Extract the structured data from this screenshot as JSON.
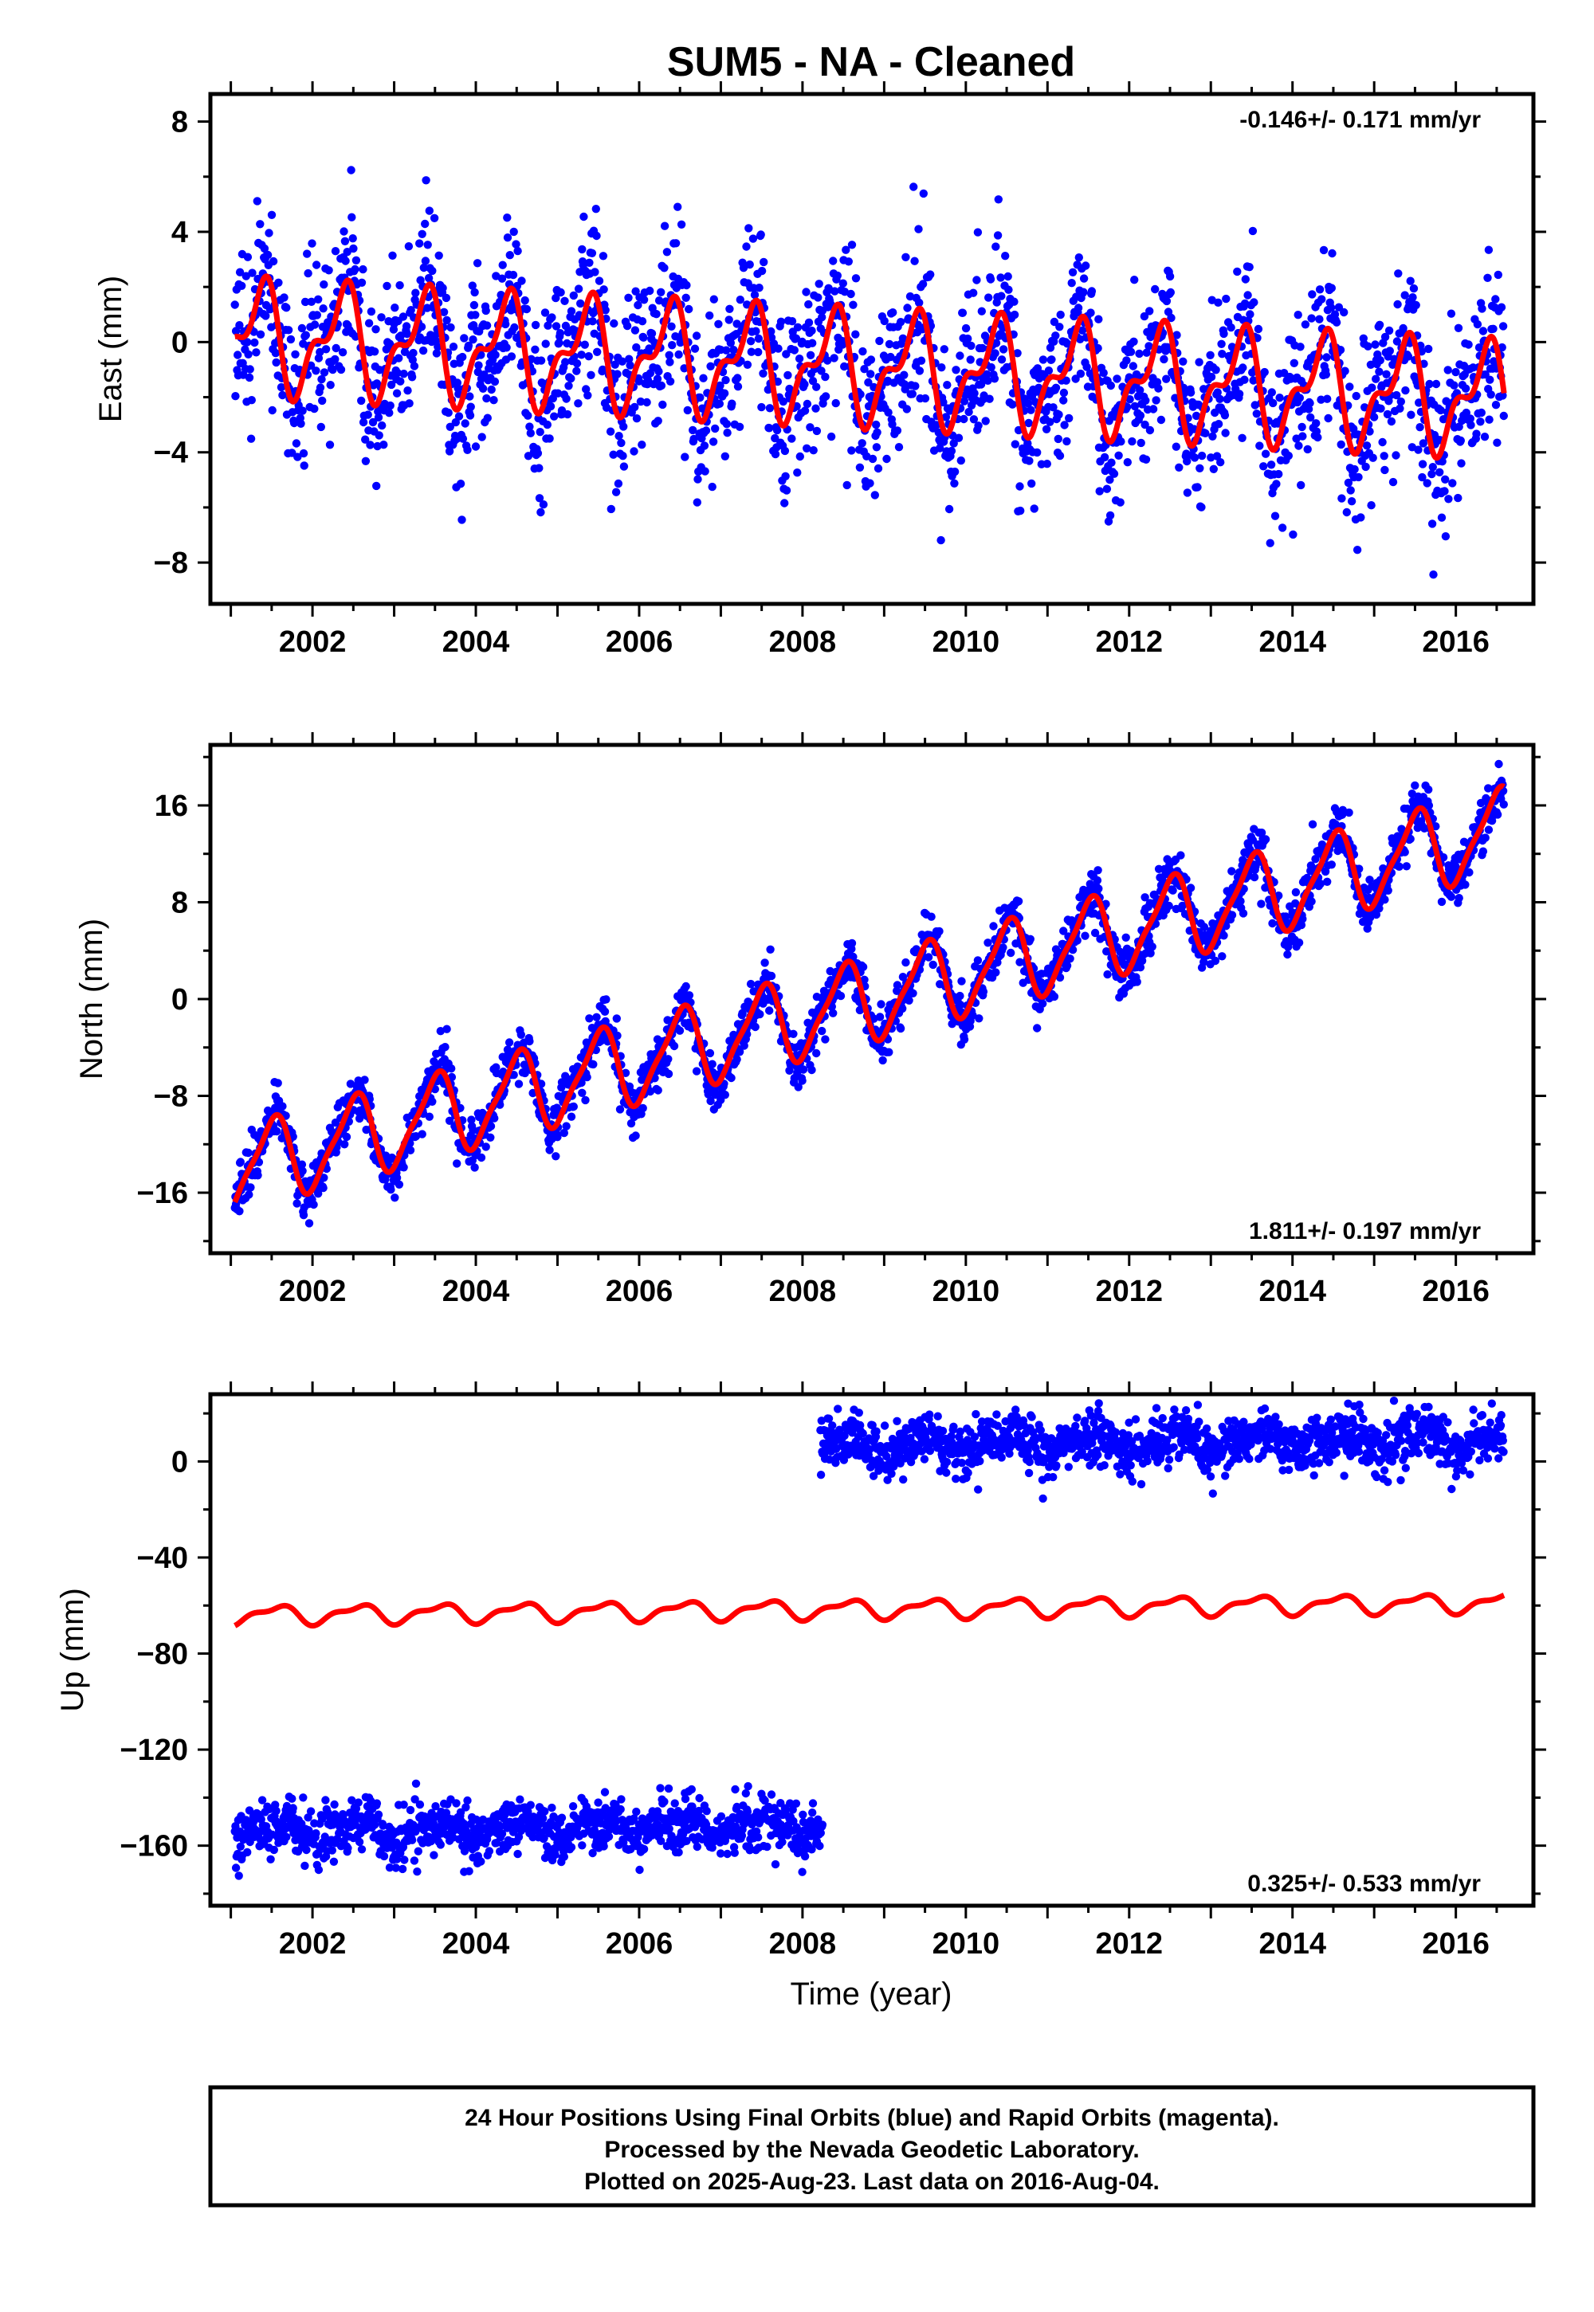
{
  "title": "SUM5  - NA - Cleaned",
  "x_label": "Time (year)",
  "footer": {
    "line1": "24 Hour Positions Using Final Orbits (blue) and Rapid Orbits (magenta).",
    "line2": "Processed by the Nevada Geodetic Laboratory.",
    "line3": "Plotted on 2025-Aug-23. Last data on 2016-Aug-04."
  },
  "colors": {
    "data": "#0000ff",
    "model": "#ff0000",
    "axis": "#000000"
  },
  "chart_data": [
    {
      "type": "scatter",
      "name": "east",
      "ylabel": "East (mm)",
      "rate_text": "-0.146+/- 0.171 mm/yr",
      "rate_position": "top-right",
      "xlim": [
        2000.75,
        2016.95
      ],
      "ylim": [
        -9.5,
        9.0
      ],
      "xticks": [
        2002,
        2004,
        2006,
        2008,
        2010,
        2012,
        2014,
        2016
      ],
      "yticks": [
        -8,
        -4,
        0,
        4,
        8
      ],
      "yticks_labels": [
        "−8",
        "−4",
        "0",
        "4",
        "8"
      ],
      "data_range": [
        2001.05,
        2016.59
      ],
      "series": [
        {
          "role": "data",
          "color": "#0000ff",
          "model": {
            "offset": 0.2,
            "trend_mm_per_yr": -0.146,
            "annual_amp": 1.7,
            "annual_phase_yr": 0.1,
            "semiannual_amp": 0.9,
            "semiannual_phase_yr": 0.35,
            "scatter_sd": 1.5
          },
          "segments": [
            {
              "start": 2001.05,
              "end": 2016.59,
              "offset": 0.2
            }
          ]
        },
        {
          "role": "model",
          "color": "#ff0000",
          "model": {
            "offset": 0.2,
            "trend_mm_per_yr": -0.146,
            "annual_amp": 1.7,
            "annual_phase_yr": 0.1,
            "semiannual_amp": 0.9,
            "semiannual_phase_yr": 0.35
          }
        }
      ]
    },
    {
      "type": "scatter",
      "name": "north",
      "ylabel": "North (mm)",
      "rate_text": "1.811+/- 0.197 mm/yr",
      "rate_position": "bottom-right",
      "xlim": [
        2000.75,
        2016.95
      ],
      "ylim": [
        -21.0,
        21.0
      ],
      "xticks": [
        2002,
        2004,
        2006,
        2008,
        2010,
        2012,
        2014,
        2016
      ],
      "yticks": [
        -16,
        -8,
        0,
        8,
        16
      ],
      "yticks_labels": [
        "−16",
        "−8",
        "0",
        "8",
        "16"
      ],
      "data_range": [
        2001.05,
        2016.59
      ],
      "series": [
        {
          "role": "data",
          "color": "#0000ff",
          "model": {
            "offset": -14.2,
            "trend_mm_per_yr": 1.811,
            "annual_amp": 3.3,
            "annual_phase_yr": 0.25,
            "semiannual_amp": 0.8,
            "semiannual_phase_yr": 0.5,
            "scatter_sd": 1.1
          },
          "segments": [
            {
              "start": 2001.05,
              "end": 2016.59,
              "offset": -14.2
            }
          ]
        },
        {
          "role": "model",
          "color": "#ff0000",
          "model": {
            "offset": -14.2,
            "trend_mm_per_yr": 1.811,
            "annual_amp": 3.3,
            "annual_phase_yr": 0.25,
            "semiannual_amp": 0.8,
            "semiannual_phase_yr": 0.5
          }
        }
      ]
    },
    {
      "type": "scatter",
      "name": "up",
      "ylabel": "Up (mm)",
      "rate_text": "0.325+/- 0.533 mm/yr",
      "rate_position": "bottom-right",
      "xlim": [
        2000.75,
        2016.95
      ],
      "ylim": [
        -185,
        28
      ],
      "xticks": [
        2002,
        2004,
        2006,
        2008,
        2010,
        2012,
        2014,
        2016
      ],
      "yticks": [
        -160,
        -120,
        -80,
        -40,
        0
      ],
      "yticks_labels": [
        "−160",
        "−120",
        "−80",
        "−40",
        "0"
      ],
      "data_range": [
        2001.05,
        2016.59
      ],
      "series": [
        {
          "role": "data",
          "color": "#0000ff",
          "model": {
            "trend_mm_per_yr": 0.325,
            "annual_amp": 3.5,
            "annual_phase_yr": 0.3,
            "semiannual_amp": 1.5,
            "semiannual_phase_yr": 0.1,
            "scatter_sd": 5.5
          },
          "segments": [
            {
              "start": 2001.05,
              "end": 2008.25,
              "offset": -154
            },
            {
              "start": 2008.22,
              "end": 2016.59,
              "offset": 4
            }
          ]
        },
        {
          "role": "model",
          "color": "#ff0000",
          "model": {
            "offset": -64,
            "trend_mm_per_yr": 0.325,
            "annual_amp": 3.5,
            "annual_phase_yr": 0.3,
            "semiannual_amp": 1.5,
            "semiannual_phase_yr": 0.1
          }
        }
      ]
    }
  ]
}
